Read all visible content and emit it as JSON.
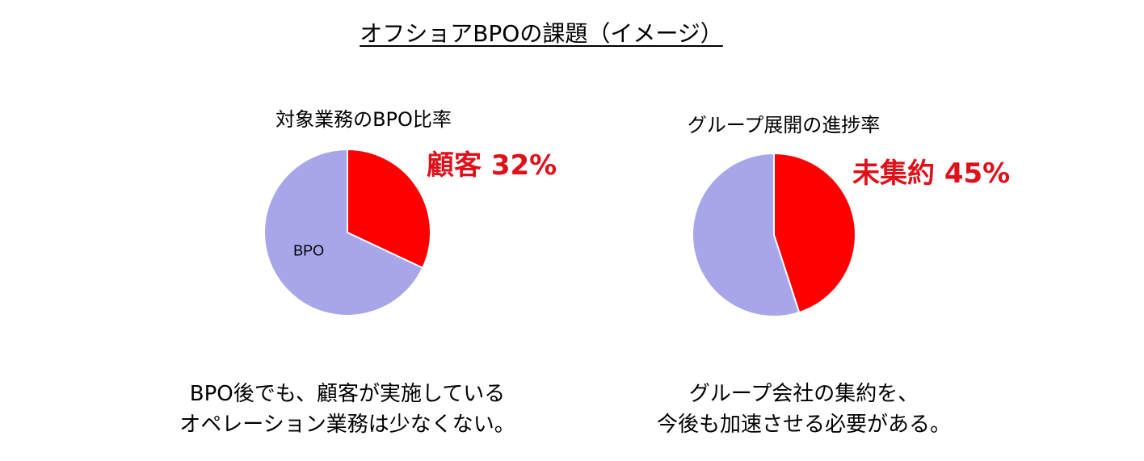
{
  "page_title": "オフショアBPOの課題（イメージ）",
  "colors": {
    "highlight": "#ff0000",
    "base": "#a6a6e8",
    "callout_text": "#e0101a"
  },
  "charts": [
    {
      "title": "対象業務のBPO比率",
      "callout": "顧客 32%",
      "slice_label": "BPO",
      "caption_lines": [
        "BPO後でも、顧客が実施している",
        "オペレーション業務は少なくない。"
      ]
    },
    {
      "title": "グループ展開の進捗率",
      "callout": "未集約 45%",
      "caption_lines": [
        "グループ会社の集約を、",
        "今後も加速させる必要がある。"
      ]
    }
  ],
  "chart_data": [
    {
      "type": "pie",
      "title": "対象業務のBPO比率",
      "slices": [
        {
          "label": "顧客",
          "value": 32,
          "color": "#ff0000"
        },
        {
          "label": "BPO",
          "value": 68,
          "color": "#a6a6e8"
        }
      ]
    },
    {
      "type": "pie",
      "title": "グループ展開の進捗率",
      "slices": [
        {
          "label": "未集約",
          "value": 45,
          "color": "#ff0000"
        },
        {
          "label": "",
          "value": 55,
          "color": "#a6a6e8"
        }
      ]
    }
  ]
}
